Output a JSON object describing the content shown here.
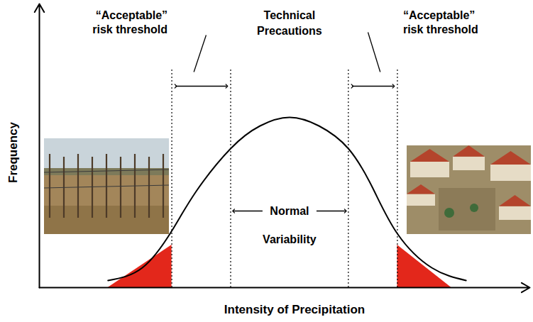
{
  "chart_data": {
    "type": "line",
    "x_label": "Intensity of Precipitation",
    "y_label": "Frequency",
    "x": [
      14,
      21,
      27,
      32,
      39,
      45,
      51,
      57,
      63,
      68,
      73,
      80,
      87
    ],
    "values": [
      2.5,
      7,
      20,
      34,
      49,
      57,
      60,
      57,
      49,
      35,
      19,
      7,
      2.5
    ],
    "color": "#000000",
    "xlim": [
      0,
      100
    ],
    "ylim": [
      0,
      100
    ],
    "xticks": [],
    "yticks": [],
    "tick_labels": false,
    "grid": false,
    "acceptable_risk_thresholds": [
      27,
      73
    ],
    "normal_variability_bounds": [
      39,
      63
    ],
    "tail_areas": [
      {
        "x": [
          14,
          27
        ],
        "values": [
          0,
          15
        ],
        "color": "#e3271b"
      },
      {
        "x": [
          73,
          84
        ],
        "values": [
          15,
          0
        ],
        "color": "#e3271b"
      }
    ],
    "annotations": {
      "acceptable_risk_threshold": "“Acceptable” risk threshold",
      "technical_precautions": "Technical Precautions",
      "normal_variability": "Normal Variability"
    }
  }
}
